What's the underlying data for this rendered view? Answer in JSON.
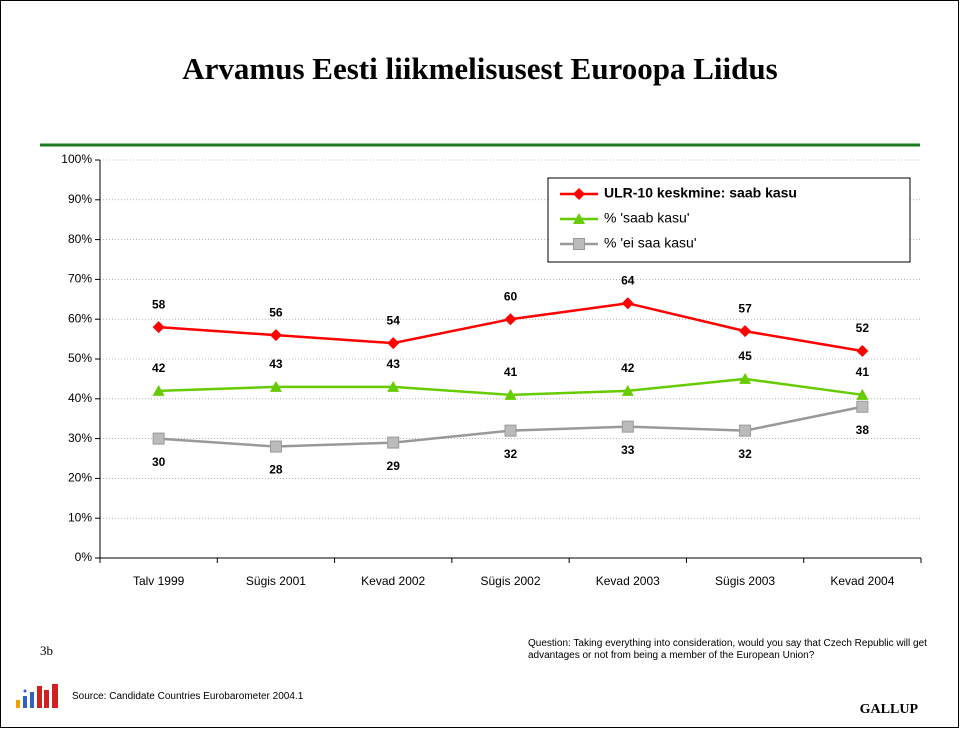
{
  "chart_data": {
    "type": "line",
    "title": "Arvamus Eesti liikmelisusest Euroopa Liidus",
    "categories": [
      "Talv 1999",
      "Sügis 2001",
      "Kevad 2002",
      "Sügis 2002",
      "Kevad  2003",
      "Sügis 2003",
      "Kevad 2004"
    ],
    "series": [
      {
        "name": "ULR-10 keskmine: saab kasu",
        "color": "#ff0000",
        "marker": "diamond",
        "label_side": "above",
        "values": [
          58,
          56,
          54,
          60,
          64,
          57,
          52
        ]
      },
      {
        "name": "% 'saab kasu'",
        "color": "#66cc00",
        "marker": "triangle",
        "label_side": "above",
        "values": [
          42,
          43,
          43,
          41,
          42,
          45,
          41
        ]
      },
      {
        "name": "% 'ei saa kasu'",
        "color": "#999999",
        "marker": "square",
        "label_side": "below",
        "values": [
          30,
          28,
          29,
          32,
          33,
          32,
          38
        ]
      }
    ],
    "ylim": [
      0,
      100
    ],
    "yticks": [
      {
        "value": 0,
        "label": "0%"
      },
      {
        "value": 10,
        "label": "10%"
      },
      {
        "value": 20,
        "label": "20%"
      },
      {
        "value": 30,
        "label": "30%"
      },
      {
        "value": 40,
        "label": "40%"
      },
      {
        "value": 50,
        "label": "50%"
      },
      {
        "value": 60,
        "label": "60%"
      },
      {
        "value": 70,
        "label": "70%"
      },
      {
        "value": 80,
        "label": "80%"
      },
      {
        "value": 90,
        "label": "90%"
      },
      {
        "value": 100,
        "label": "100%"
      }
    ],
    "grid": true,
    "legend": "top-right"
  },
  "slide_number": "3b",
  "question": "Question: Taking everything into consideration, would you say that Czech Republic  will get advantages or not from being a member of the European Union?",
  "source": "Source: Candidate Countries Eurobarometer 2004.1",
  "brand": "GALLUP"
}
